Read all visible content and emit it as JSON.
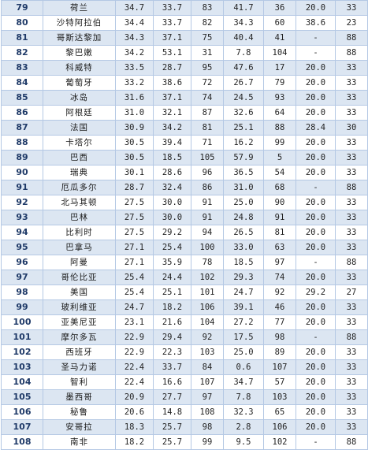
{
  "table": {
    "rows": [
      [
        "79",
        "荷兰",
        "34.7",
        "33.7",
        "83",
        "41.7",
        "36",
        "20.0",
        "33"
      ],
      [
        "80",
        "沙特阿拉伯",
        "34.4",
        "33.7",
        "82",
        "34.3",
        "60",
        "38.6",
        "23"
      ],
      [
        "81",
        "哥斯达黎加",
        "34.3",
        "37.1",
        "75",
        "40.4",
        "41",
        "-",
        "88"
      ],
      [
        "82",
        "黎巴嫩",
        "34.2",
        "53.1",
        "31",
        "7.8",
        "104",
        "-",
        "88"
      ],
      [
        "83",
        "科威特",
        "33.5",
        "28.7",
        "95",
        "47.6",
        "17",
        "20.0",
        "33"
      ],
      [
        "84",
        "葡萄牙",
        "33.2",
        "38.6",
        "72",
        "26.7",
        "79",
        "20.0",
        "33"
      ],
      [
        "85",
        "冰岛",
        "31.6",
        "37.1",
        "74",
        "24.5",
        "93",
        "20.0",
        "33"
      ],
      [
        "86",
        "阿根廷",
        "31.0",
        "32.1",
        "87",
        "32.6",
        "64",
        "20.0",
        "33"
      ],
      [
        "87",
        "法国",
        "30.9",
        "34.2",
        "81",
        "25.1",
        "88",
        "28.4",
        "30"
      ],
      [
        "88",
        "卡塔尔",
        "30.5",
        "39.4",
        "71",
        "16.2",
        "99",
        "20.0",
        "33"
      ],
      [
        "89",
        "巴西",
        "30.5",
        "18.5",
        "105",
        "57.9",
        "5",
        "20.0",
        "33"
      ],
      [
        "90",
        "瑞典",
        "30.1",
        "28.6",
        "96",
        "36.5",
        "54",
        "20.0",
        "33"
      ],
      [
        "91",
        "厄瓜多尔",
        "28.7",
        "32.4",
        "86",
        "31.0",
        "68",
        "-",
        "88"
      ],
      [
        "92",
        "北马其顿",
        "27.5",
        "30.0",
        "91",
        "25.0",
        "90",
        "20.0",
        "33"
      ],
      [
        "93",
        "巴林",
        "27.5",
        "30.0",
        "91",
        "24.8",
        "91",
        "20.0",
        "33"
      ],
      [
        "94",
        "比利时",
        "27.5",
        "29.2",
        "94",
        "26.5",
        "81",
        "20.0",
        "33"
      ],
      [
        "95",
        "巴拿马",
        "27.1",
        "25.4",
        "100",
        "33.0",
        "63",
        "20.0",
        "33"
      ],
      [
        "96",
        "阿曼",
        "27.1",
        "35.9",
        "78",
        "18.5",
        "97",
        "-",
        "88"
      ],
      [
        "97",
        "哥伦比亚",
        "25.4",
        "24.4",
        "102",
        "29.3",
        "74",
        "20.0",
        "33"
      ],
      [
        "98",
        "美国",
        "25.4",
        "25.1",
        "101",
        "24.7",
        "92",
        "29.2",
        "27"
      ],
      [
        "99",
        "玻利维亚",
        "24.7",
        "18.2",
        "106",
        "39.1",
        "46",
        "20.0",
        "33"
      ],
      [
        "100",
        "亚美尼亚",
        "23.1",
        "21.6",
        "104",
        "27.2",
        "77",
        "20.0",
        "33"
      ],
      [
        "101",
        "摩尔多瓦",
        "22.9",
        "29.4",
        "92",
        "17.5",
        "98",
        "-",
        "88"
      ],
      [
        "102",
        "西班牙",
        "22.9",
        "22.3",
        "103",
        "25.0",
        "89",
        "20.0",
        "33"
      ],
      [
        "103",
        "圣马力诺",
        "22.4",
        "33.7",
        "84",
        "0.6",
        "107",
        "20.0",
        "33"
      ],
      [
        "104",
        "智利",
        "22.4",
        "16.6",
        "107",
        "34.7",
        "57",
        "20.0",
        "33"
      ],
      [
        "105",
        "墨西哥",
        "20.9",
        "27.7",
        "97",
        "7.8",
        "103",
        "20.0",
        "33"
      ],
      [
        "106",
        "秘鲁",
        "20.6",
        "14.8",
        "108",
        "32.3",
        "65",
        "20.0",
        "33"
      ],
      [
        "107",
        "安哥拉",
        "18.3",
        "25.7",
        "98",
        "2.8",
        "106",
        "20.0",
        "33"
      ],
      [
        "108",
        "南非",
        "18.2",
        "25.7",
        "99",
        "9.5",
        "102",
        "-",
        "88"
      ]
    ]
  }
}
